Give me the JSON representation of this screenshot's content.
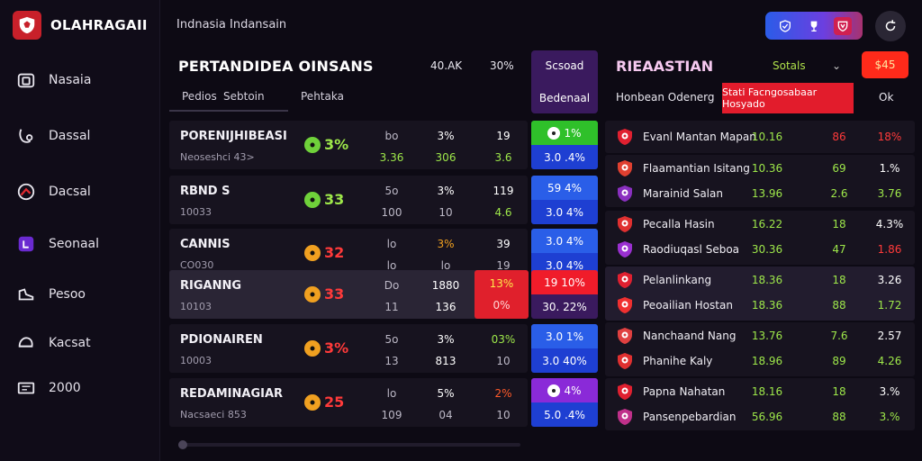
{
  "brand": {
    "name": "OLAHRAGAII"
  },
  "header": {
    "subtitle": "Indnasia Indansain"
  },
  "sidebar": {
    "items": [
      {
        "label": "Nasaia",
        "icon": "camera-icon"
      },
      {
        "label": "Dassal",
        "icon": "whistle-icon"
      },
      {
        "label": "Dacsal",
        "icon": "ball-icon"
      },
      {
        "label": "Seonaal",
        "icon": "badge-icon"
      },
      {
        "label": "Pesoo",
        "icon": "shoe-icon"
      },
      {
        "label": "Kacsat",
        "icon": "helmet-icon"
      },
      {
        "label": "2000",
        "icon": "ticket-icon"
      }
    ]
  },
  "matches": {
    "title": "PERTANDIDEA OINSANS",
    "col_headers": [
      "40.AK",
      "30%"
    ],
    "tabs": [
      "Pedios",
      "Sebtoin",
      "Pehtaka"
    ],
    "odds_header": {
      "label1": "Scsoad",
      "label2": "Bedenaal"
    },
    "rows": [
      {
        "name": "PORENIJHIBEASI",
        "sub": "Neoseshci 43>",
        "score": "3%",
        "badge_color": "#6fd13a",
        "score_color": "#9ee84a",
        "c1": "bo",
        "c2": "3%",
        "c3": "19",
        "c1b": "3.36",
        "c2b": "306",
        "c3b": "3.6",
        "c1b_color": "#9ee84a",
        "c2b_color": "#9ee84a",
        "c3b_color": "#9ee84a",
        "odds_top": "1%",
        "odds_bot": "3.0 .4%",
        "odds_top_bg": "#2fc02a",
        "odds_bot_bg": "#1e3fd2"
      },
      {
        "name": "RBND S",
        "sub": "10033",
        "score": "33",
        "badge_color": "#6fd13a",
        "score_color": "#9ee84a",
        "c1": "5o",
        "c2": "3%",
        "c3": "119",
        "c1b": "100",
        "c2b": "10",
        "c3b": "4.6",
        "c1b_color": "#bcb8c6",
        "c2b_color": "#bcb8c6",
        "c3b_color": "#9ee84a",
        "odds_top": "59 4%",
        "odds_bot": "3.0 4%",
        "odds_top_bg": "#2a5ee8",
        "odds_bot_bg": "#1e3fd2"
      },
      {
        "name": "CANNIS",
        "sub": "CO030",
        "score": "32",
        "badge_color": "#f0a020",
        "score_color": "#ff3a3a",
        "c1": "lo",
        "c2": "3%",
        "c3": "39",
        "c1b": "lo",
        "c2b": "lo",
        "c3b": "19",
        "c1b_color": "#bcb8c6",
        "c2b_color": "#bcb8c6",
        "c3b_color": "#bcb8c6",
        "c2_color": "#f0a020",
        "odds_top": "3.0 4%",
        "odds_bot": "3.0 4%",
        "odds_top_bg": "#2a5ee8",
        "odds_bot_bg": "#1e3fd2"
      },
      {
        "name": "RIGANNG",
        "sub": "10103",
        "score": "33",
        "badge_color": "#f0a020",
        "score_color": "#ff3a3a",
        "c1": "Do",
        "c2": "1880",
        "c3": "",
        "c1b": "11",
        "c2b": "136",
        "c3b": "",
        "c1b_color": "#bcb8c6",
        "c2b_color": "#fff",
        "c3b_color": "#fff",
        "odds_top": "19 10%",
        "odds_bot": "30. 22%",
        "odds_top_bg": "#f01c2a",
        "odds_bot_bg": "#3a1a5e"
      },
      {
        "name": "PDIONAIREN",
        "sub": "10003",
        "score": "3%",
        "badge_color": "#f0a020",
        "score_color": "#ff3a3a",
        "c1": "5o",
        "c2": "3%",
        "c3": "03%",
        "c1b": "13",
        "c2b": "813",
        "c3b": "10",
        "c1b_color": "#bcb8c6",
        "c2b_color": "#fff",
        "c3b_color": "#bcb8c6",
        "c3_color": "#9ee84a",
        "odds_top": "3.0 1%",
        "odds_bot": "3.0 40%",
        "odds_top_bg": "#2a5ee8",
        "odds_bot_bg": "#1e3fd2"
      },
      {
        "name": "REDAMINAGIAR",
        "sub": "Nacsaeci 853",
        "score": "25",
        "badge_color": "#f0a020",
        "score_color": "#ff3a3a",
        "c1": "lo",
        "c2": "5%",
        "c3": "2%",
        "c1b": "109",
        "c2b": "04",
        "c3b": "10",
        "c1b_color": "#bcb8c6",
        "c2b_color": "#bcb8c6",
        "c3b_color": "#bcb8c6",
        "c3_color": "#ff5a2a",
        "odds_top": "4%",
        "odds_bot": "5.0 .4%",
        "odds_top_bg": "#8a2ad8",
        "odds_bot_bg": "#1e3fd2"
      }
    ],
    "highlight": {
      "top": "13%",
      "bottom": "0%"
    }
  },
  "standings": {
    "title": "RIEAASTIAN",
    "filter": "Sotals",
    "chevron": "⌄",
    "button": "$45",
    "sub_label": "Honbean Odenerg",
    "red_label": "Stati Facngosabaar Hosyado",
    "ok_label": "Ok",
    "rows": [
      {
        "team": "Evanl Mantan Mapan",
        "v1": "10.16",
        "v2": "86",
        "v3": "18%",
        "v2_color": "#ff3a3a",
        "v3_color": "#ff3a3a",
        "crest": "#e02030"
      },
      {
        "team": "Flaamantian Isitang",
        "v1": "10.36",
        "v2": "69",
        "v3": "1.%",
        "v2_color": "#9ee84a",
        "v3_color": "#fff",
        "crest": "#e04030"
      },
      {
        "team": "Marainid Salan",
        "v1": "13.96",
        "v2": "2.6",
        "v3": "3.76",
        "v2_color": "#9ee84a",
        "v3_color": "#9ee84a",
        "crest": "#8a30c0"
      },
      {
        "team": "Pecalla Hasin",
        "v1": "16.22",
        "v2": "18",
        "v3": "4.3%",
        "v2_color": "#9ee84a",
        "v3_color": "#fff",
        "crest": "#e03030"
      },
      {
        "team": "Raodiuqasl Seboa",
        "v1": "30.36",
        "v2": "47",
        "v3": "1.86",
        "v2_color": "#9ee84a",
        "v3_color": "#ff3a3a",
        "crest": "#9a30d0"
      },
      {
        "team": "Pelanlinkang",
        "v1": "18.36",
        "v2": "18",
        "v3": "3.26",
        "v2_color": "#9ee84a",
        "v3_color": "#fff",
        "crest": "#e02030"
      },
      {
        "team": "Peoailian Hostan",
        "v1": "18.36",
        "v2": "88",
        "v3": "1.72",
        "v2_color": "#9ee84a",
        "v3_color": "#9ee84a",
        "crest": "#f03030"
      },
      {
        "team": "Nanchaand Nang",
        "v1": "13.76",
        "v2": "7.6",
        "v3": "2.57",
        "v2_color": "#9ee84a",
        "v3_color": "#fff",
        "crest": "#e04040"
      },
      {
        "team": "Phanihe Kaly",
        "v1": "18.96",
        "v2": "89",
        "v3": "4.26",
        "v2_color": "#9ee84a",
        "v3_color": "#9ee84a",
        "crest": "#e03030"
      },
      {
        "team": "Papna Nahatan",
        "v1": "18.16",
        "v2": "18",
        "v3": "3.%",
        "v2_color": "#9ee84a",
        "v3_color": "#fff",
        "crest": "#e02030"
      },
      {
        "team": "Pansenpebardian",
        "v1": "56.96",
        "v2": "88",
        "v3": "3.%",
        "v2_color": "#9ee84a",
        "v3_color": "#9ee84a",
        "crest": "#c0308a"
      }
    ]
  }
}
